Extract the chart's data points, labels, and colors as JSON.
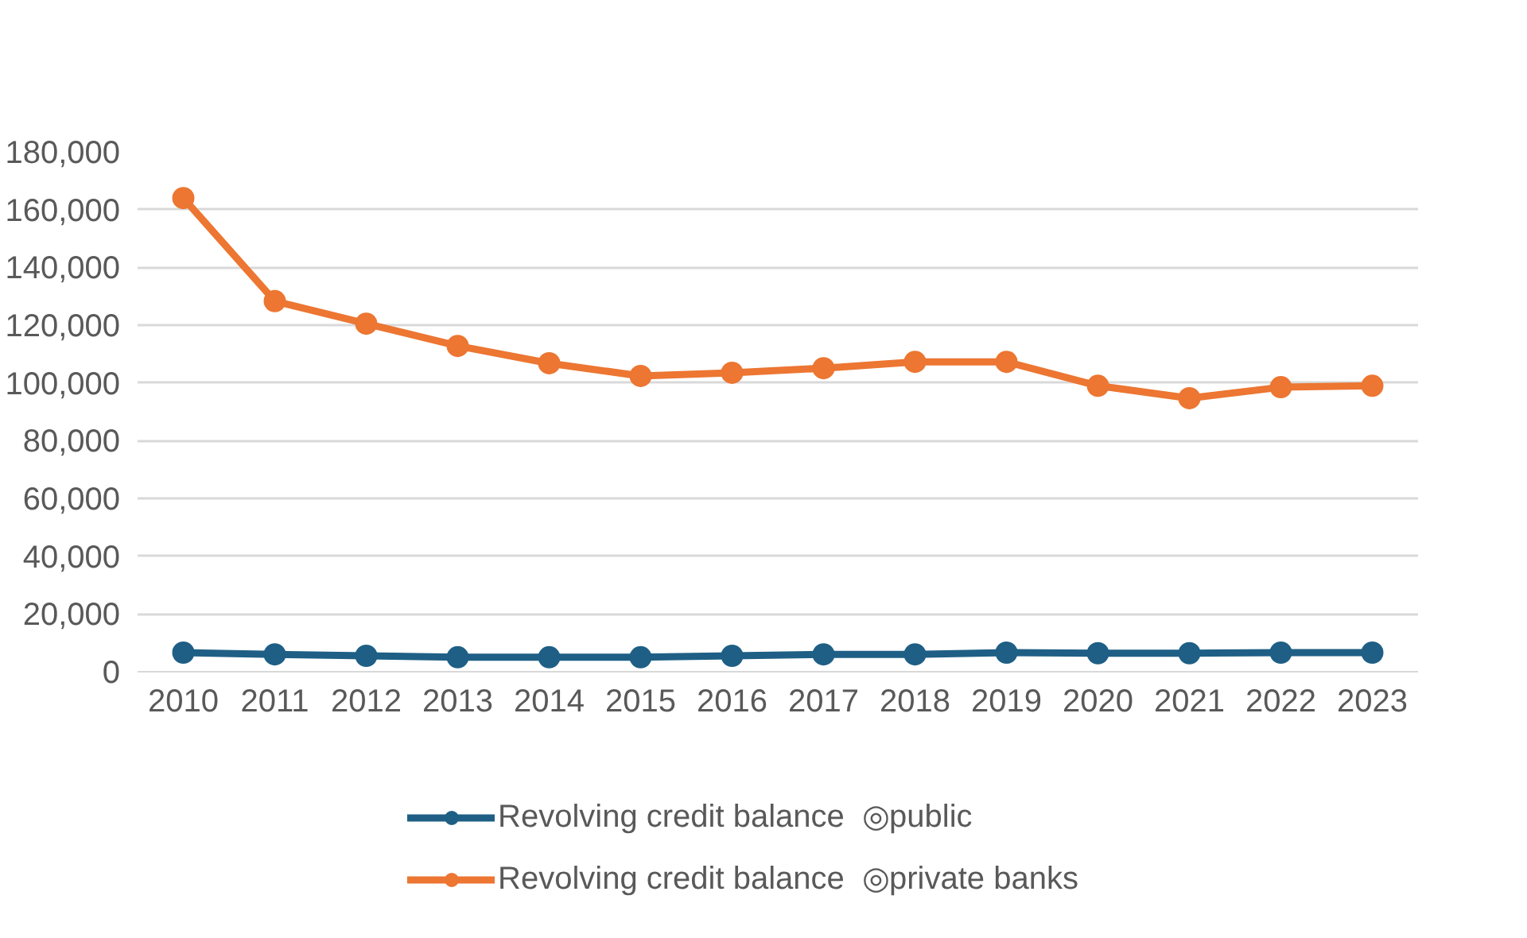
{
  "chart_data": {
    "type": "line",
    "categories": [
      "2010",
      "2011",
      "2012",
      "2013",
      "2014",
      "2015",
      "2016",
      "2017",
      "2018",
      "2019",
      "2020",
      "2021",
      "2022",
      "2023"
    ],
    "series": [
      {
        "name": "Revolving credit balance  ◎public",
        "color": "#1f5f85",
        "values": [
          6600,
          6000,
          5500,
          5000,
          5000,
          5000,
          5500,
          6000,
          6000,
          6600,
          6400,
          6400,
          6600,
          6600
        ]
      },
      {
        "name": "Revolving credit balance  ◎private banks",
        "color": "#ec7632",
        "values": [
          164000,
          128300,
          120500,
          112800,
          106800,
          102400,
          103500,
          105100,
          107300,
          107300,
          99000,
          94700,
          98500,
          99000
        ]
      }
    ],
    "ylim": [
      0,
      180000
    ],
    "yticks": [
      {
        "value": 0,
        "label": "0"
      },
      {
        "value": 20000,
        "label": "20,000"
      },
      {
        "value": 40000,
        "label": "40,000"
      },
      {
        "value": 60000,
        "label": "60,000"
      },
      {
        "value": 80000,
        "label": "80,000"
      },
      {
        "value": 100000,
        "label": "100,000"
      },
      {
        "value": 120000,
        "label": "120,000"
      },
      {
        "value": 140000,
        "label": "140,000"
      },
      {
        "value": 160000,
        "label": "160,000"
      },
      {
        "value": 180000,
        "label": "180,000"
      }
    ],
    "grid": "y",
    "legend": "bottom",
    "marker": "circle",
    "line_style": "solid"
  }
}
